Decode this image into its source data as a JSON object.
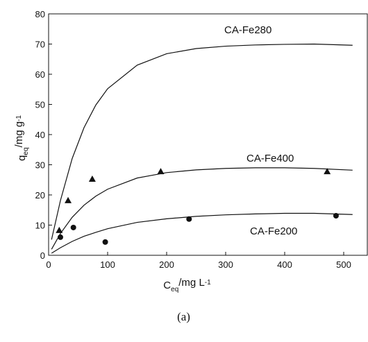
{
  "chart_data": {
    "type": "scatter-fit",
    "x_label": [
      "C",
      "eq",
      "/mg L",
      "-1"
    ],
    "y_label": [
      "q",
      "eq",
      "/mg g",
      "-1"
    ],
    "caption": "(a)",
    "xlim": [
      0,
      540
    ],
    "xticks": [
      0,
      100,
      200,
      300,
      400,
      500
    ],
    "ylim": [
      0,
      80
    ],
    "yticks": [
      0,
      10,
      20,
      30,
      40,
      50,
      60,
      70,
      80
    ],
    "fit_x": [
      5,
      20,
      40,
      60,
      80,
      100,
      150,
      200,
      250,
      300,
      350,
      400,
      450,
      515
    ],
    "series": [
      {
        "name": "CA-Fe280",
        "color": "#111111",
        "values": [
          5.2,
          18.1,
          32.1,
          42.3,
          49.8,
          55.2,
          63.0,
          66.8,
          68.5,
          69.3,
          69.7,
          69.9,
          70,
          69.6
        ]
      },
      {
        "name": "CA-Fe400",
        "color": "#111111",
        "values": [
          2.0,
          7.2,
          12.6,
          16.6,
          19.6,
          21.9,
          25.6,
          27.4,
          28.3,
          28.8,
          29.0,
          29.0,
          28.8,
          28.2
        ],
        "marker": "triangle",
        "points_x": [
          18,
          33,
          74,
          190,
          472
        ],
        "points": [
          8.3,
          18.2,
          25.3,
          27.8,
          27.8
        ]
      },
      {
        "name": "CA-Fe200",
        "color": "#111111",
        "values": [
          0.7,
          2.5,
          4.6,
          6.3,
          7.6,
          8.8,
          10.9,
          12.1,
          12.9,
          13.4,
          13.7,
          13.9,
          13.9,
          13.5
        ],
        "marker": "circle",
        "points_x": [
          20,
          42,
          96,
          238,
          487
        ],
        "points": [
          6,
          9.2,
          4.4,
          12,
          13.1
        ]
      }
    ]
  }
}
